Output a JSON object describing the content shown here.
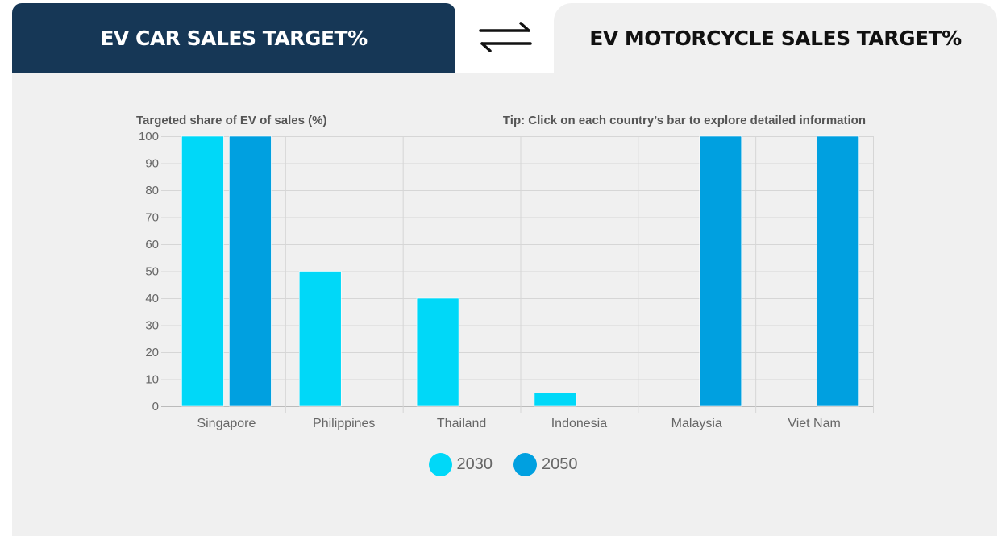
{
  "tabs": {
    "car_label": "EV CAR SALES TARGET%",
    "motorcycle_label": "EV MOTORCYCLE SALES TARGET%"
  },
  "colors": {
    "tab_active_bg": "#163756",
    "series_2030": "#00d8f8",
    "series_2050": "#00a0e0"
  },
  "chart_data": {
    "type": "bar",
    "title": "",
    "ylabel": "Targeted share of EV of sales (%)",
    "tip": "Tip: Click on each country’s bar to explore detailed information",
    "categories": [
      "Singapore",
      "Philippines",
      "Thailand",
      "Indonesia",
      "Malaysia",
      "Viet Nam"
    ],
    "series": [
      {
        "name": "2030",
        "color": "#00d8f8",
        "values": [
          100,
          50,
          40,
          5,
          0,
          0
        ]
      },
      {
        "name": "2050",
        "color": "#00a0e0",
        "values": [
          100,
          0,
          0,
          0,
          100,
          100
        ]
      }
    ],
    "ylim": [
      0,
      100
    ],
    "yticks": [
      0,
      10,
      20,
      30,
      40,
      50,
      60,
      70,
      80,
      90,
      100
    ],
    "grid": true,
    "legend": "bottom-center"
  }
}
